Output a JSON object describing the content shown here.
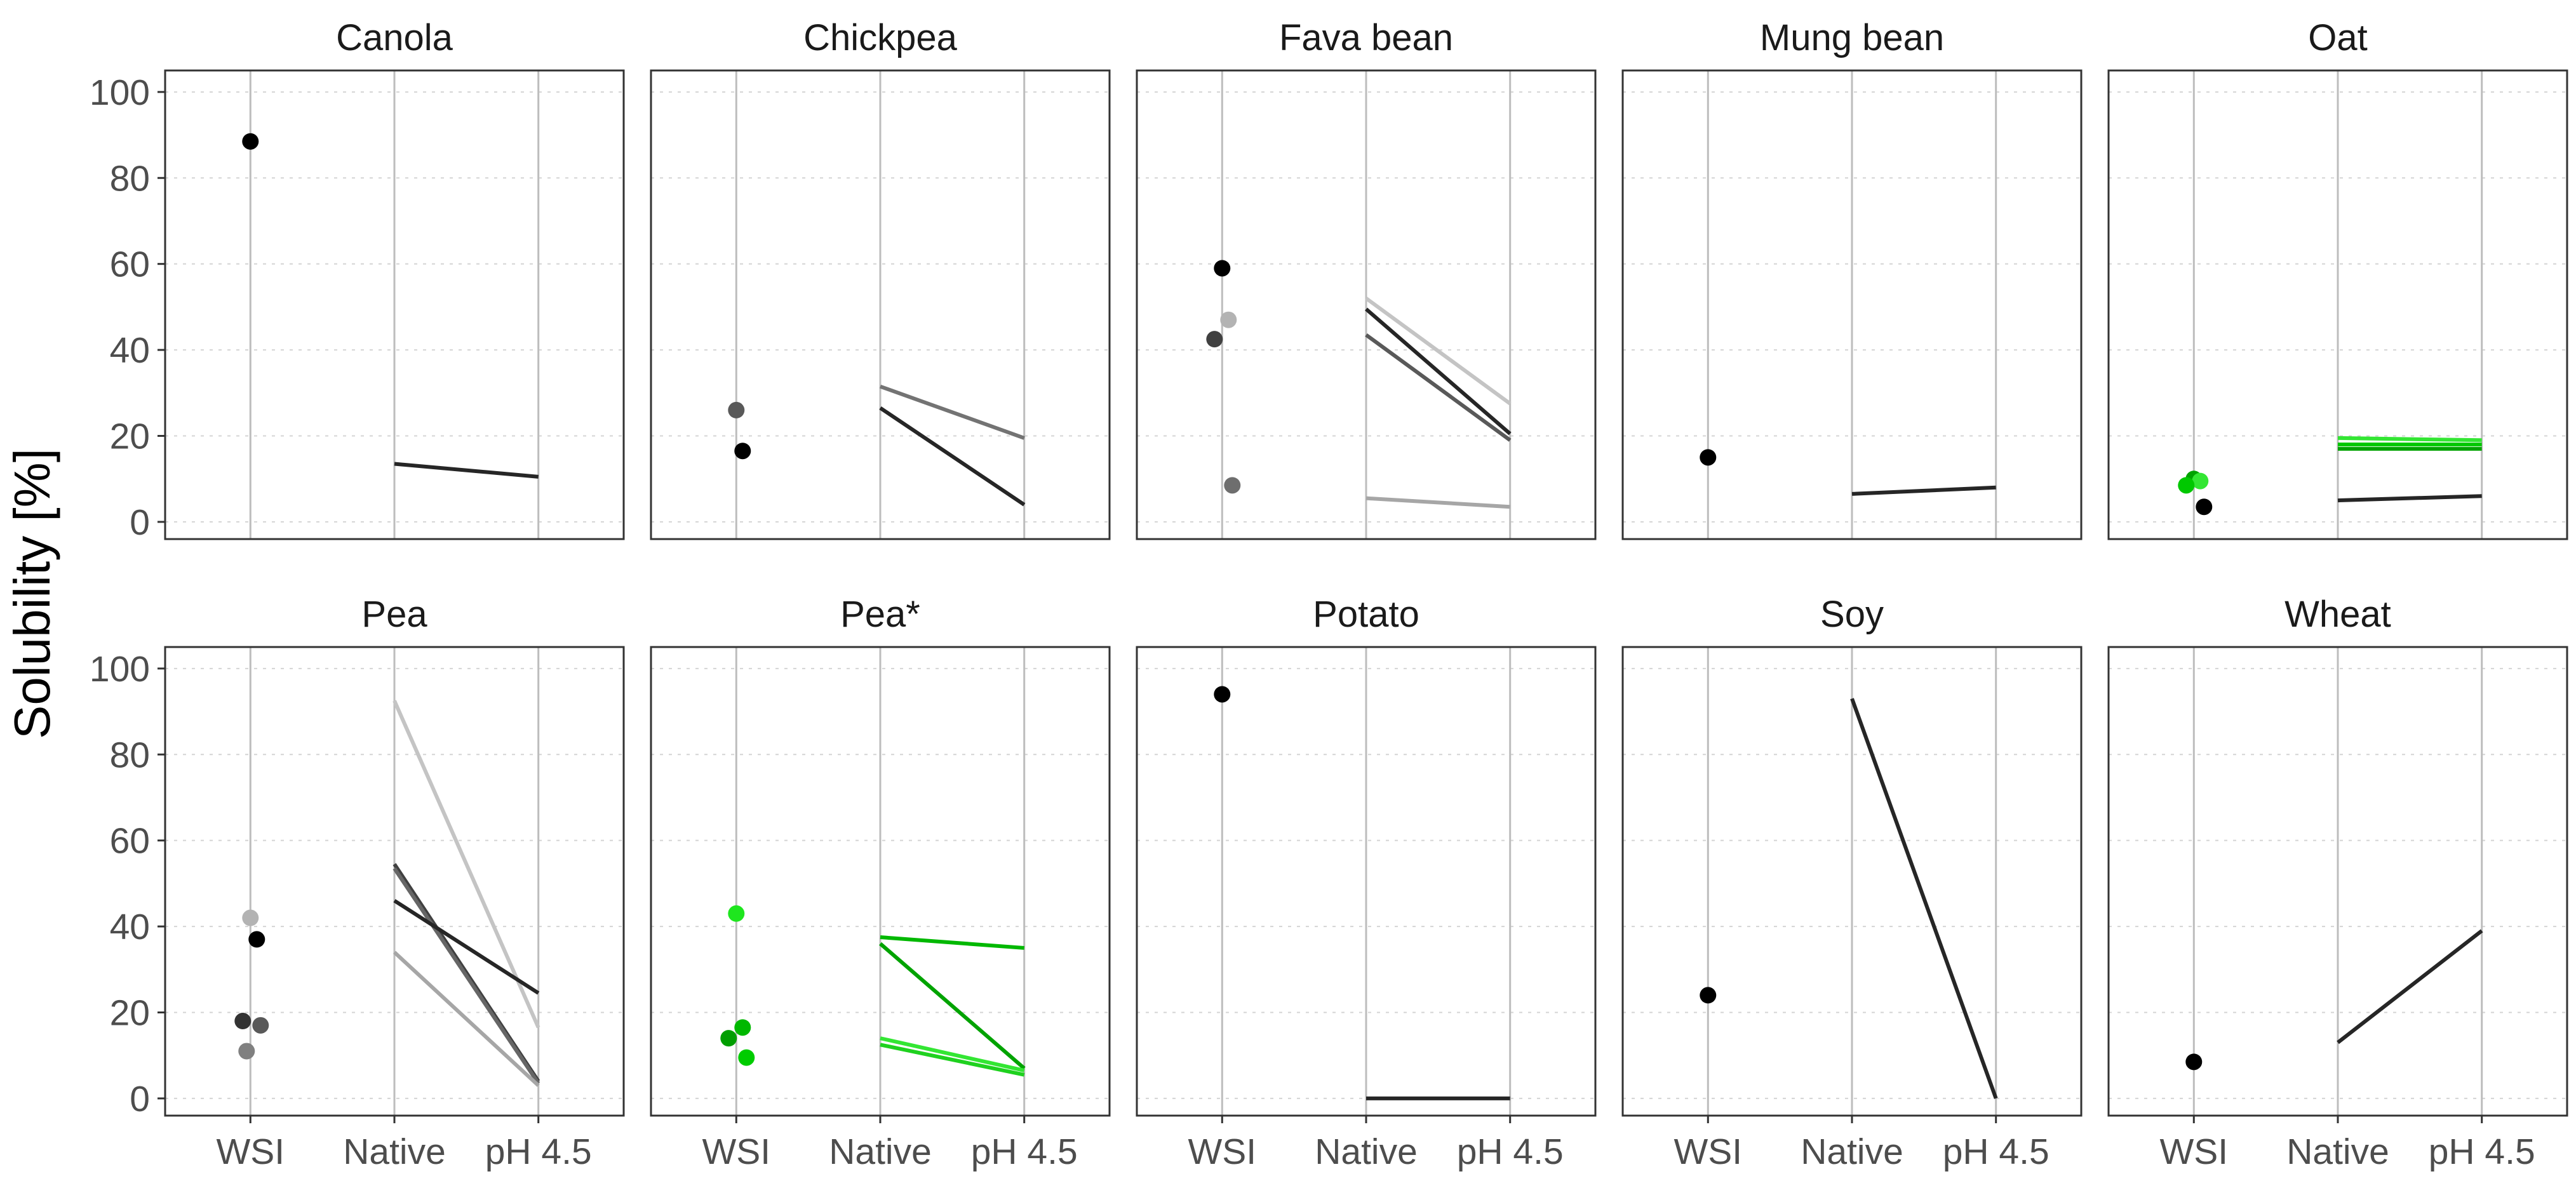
{
  "chart_data": {
    "type": "faceted-dot-line",
    "ylabel": "Solubility [%]",
    "ylim": [
      -4,
      105
    ],
    "yticks": [
      0,
      20,
      40,
      60,
      80,
      100
    ],
    "xcategories": [
      "WSI",
      "Native",
      "pH 4.5"
    ],
    "legend": "none",
    "grid": "horizontal-dotted, vertical-solid at categories",
    "panels": [
      {
        "title": "Canola",
        "points": [
          {
            "x": "WSI",
            "y": 88.5,
            "color": "#000000"
          }
        ],
        "lines": [
          {
            "native": 13.5,
            "ph45": 10.5,
            "color": "#262626"
          }
        ]
      },
      {
        "title": "Chickpea",
        "points": [
          {
            "x": "WSI",
            "y": 26.0,
            "color": "#595959"
          },
          {
            "x": "WSI",
            "y": 16.5,
            "color": "#000000"
          }
        ],
        "lines": [
          {
            "native": 31.5,
            "ph45": 19.5,
            "color": "#737373"
          },
          {
            "native": 26.5,
            "ph45": 4.0,
            "color": "#262626"
          }
        ]
      },
      {
        "title": "Fava bean",
        "points": [
          {
            "x": "WSI",
            "y": 59.0,
            "color": "#000000"
          },
          {
            "x": "WSI",
            "y": 47.0,
            "color": "#b3b3b3"
          },
          {
            "x": "WSI",
            "y": 42.5,
            "color": "#404040"
          },
          {
            "x": "WSI",
            "y": 8.5,
            "color": "#6e6e6e"
          }
        ],
        "lines": [
          {
            "native": 52.0,
            "ph45": 27.5,
            "color": "#c4c4c4"
          },
          {
            "native": 49.5,
            "ph45": 20.5,
            "color": "#262626"
          },
          {
            "native": 43.5,
            "ph45": 19.0,
            "color": "#595959"
          },
          {
            "native": 5.5,
            "ph45": 3.5,
            "color": "#a6a6a6"
          }
        ]
      },
      {
        "title": "Mung bean",
        "points": [
          {
            "x": "WSI",
            "y": 15.0,
            "color": "#000000"
          }
        ],
        "lines": [
          {
            "native": 6.5,
            "ph45": 8.0,
            "color": "#262626"
          }
        ]
      },
      {
        "title": "Oat",
        "points": [
          {
            "x": "WSI",
            "y": 10.0,
            "color": "#00a300"
          },
          {
            "x": "WSI",
            "y": 9.5,
            "color": "#33e633"
          },
          {
            "x": "WSI",
            "y": 8.5,
            "color": "#00c800"
          },
          {
            "x": "WSI",
            "y": 3.5,
            "color": "#000000"
          }
        ],
        "lines": [
          {
            "native": 19.5,
            "ph45": 19.0,
            "color": "#33e633"
          },
          {
            "native": 18.0,
            "ph45": 18.0,
            "color": "#00c800"
          },
          {
            "native": 17.0,
            "ph45": 17.0,
            "color": "#00a300"
          },
          {
            "native": 5.0,
            "ph45": 6.0,
            "color": "#262626"
          }
        ]
      },
      {
        "title": "Pea",
        "points": [
          {
            "x": "WSI",
            "y": 42.0,
            "color": "#b3b3b3"
          },
          {
            "x": "WSI",
            "y": 37.0,
            "color": "#000000"
          },
          {
            "x": "WSI",
            "y": 18.0,
            "color": "#333333"
          },
          {
            "x": "WSI",
            "y": 17.0,
            "color": "#595959"
          },
          {
            "x": "WSI",
            "y": 11.0,
            "color": "#808080"
          }
        ],
        "lines": [
          {
            "native": 92.5,
            "ph45": 16.5,
            "color": "#c4c4c4"
          },
          {
            "native": 54.5,
            "ph45": 4.0,
            "color": "#404040"
          },
          {
            "native": 53.5,
            "ph45": 3.5,
            "color": "#666666"
          },
          {
            "native": 46.0,
            "ph45": 24.5,
            "color": "#262626"
          },
          {
            "native": 34.0,
            "ph45": 3.0,
            "color": "#a6a6a6"
          }
        ]
      },
      {
        "title": "Pea*",
        "points": [
          {
            "x": "WSI",
            "y": 43.0,
            "color": "#1ee61e"
          },
          {
            "x": "WSI",
            "y": 16.5,
            "color": "#00b800"
          },
          {
            "x": "WSI",
            "y": 14.0,
            "color": "#009e00"
          },
          {
            "x": "WSI",
            "y": 9.5,
            "color": "#00cc00"
          }
        ],
        "lines": [
          {
            "native": 37.5,
            "ph45": 35.0,
            "color": "#00b800"
          },
          {
            "native": 36.0,
            "ph45": 7.0,
            "color": "#00a300"
          },
          {
            "native": 14.0,
            "ph45": 6.5,
            "color": "#33e633"
          },
          {
            "native": 12.5,
            "ph45": 5.5,
            "color": "#1fd11f"
          }
        ]
      },
      {
        "title": "Potato",
        "points": [
          {
            "x": "WSI",
            "y": 94.0,
            "color": "#000000"
          }
        ],
        "lines": [
          {
            "native": 0.0,
            "ph45": 0.0,
            "color": "#262626"
          }
        ]
      },
      {
        "title": "Soy",
        "points": [
          {
            "x": "WSI",
            "y": 24.0,
            "color": "#000000"
          }
        ],
        "lines": [
          {
            "native": 93.0,
            "ph45": 0.0,
            "color": "#262626"
          }
        ]
      },
      {
        "title": "Wheat",
        "points": [
          {
            "x": "WSI",
            "y": 8.5,
            "color": "#000000"
          }
        ],
        "lines": [
          {
            "native": 13.0,
            "ph45": 39.0,
            "color": "#262626"
          }
        ]
      }
    ]
  }
}
